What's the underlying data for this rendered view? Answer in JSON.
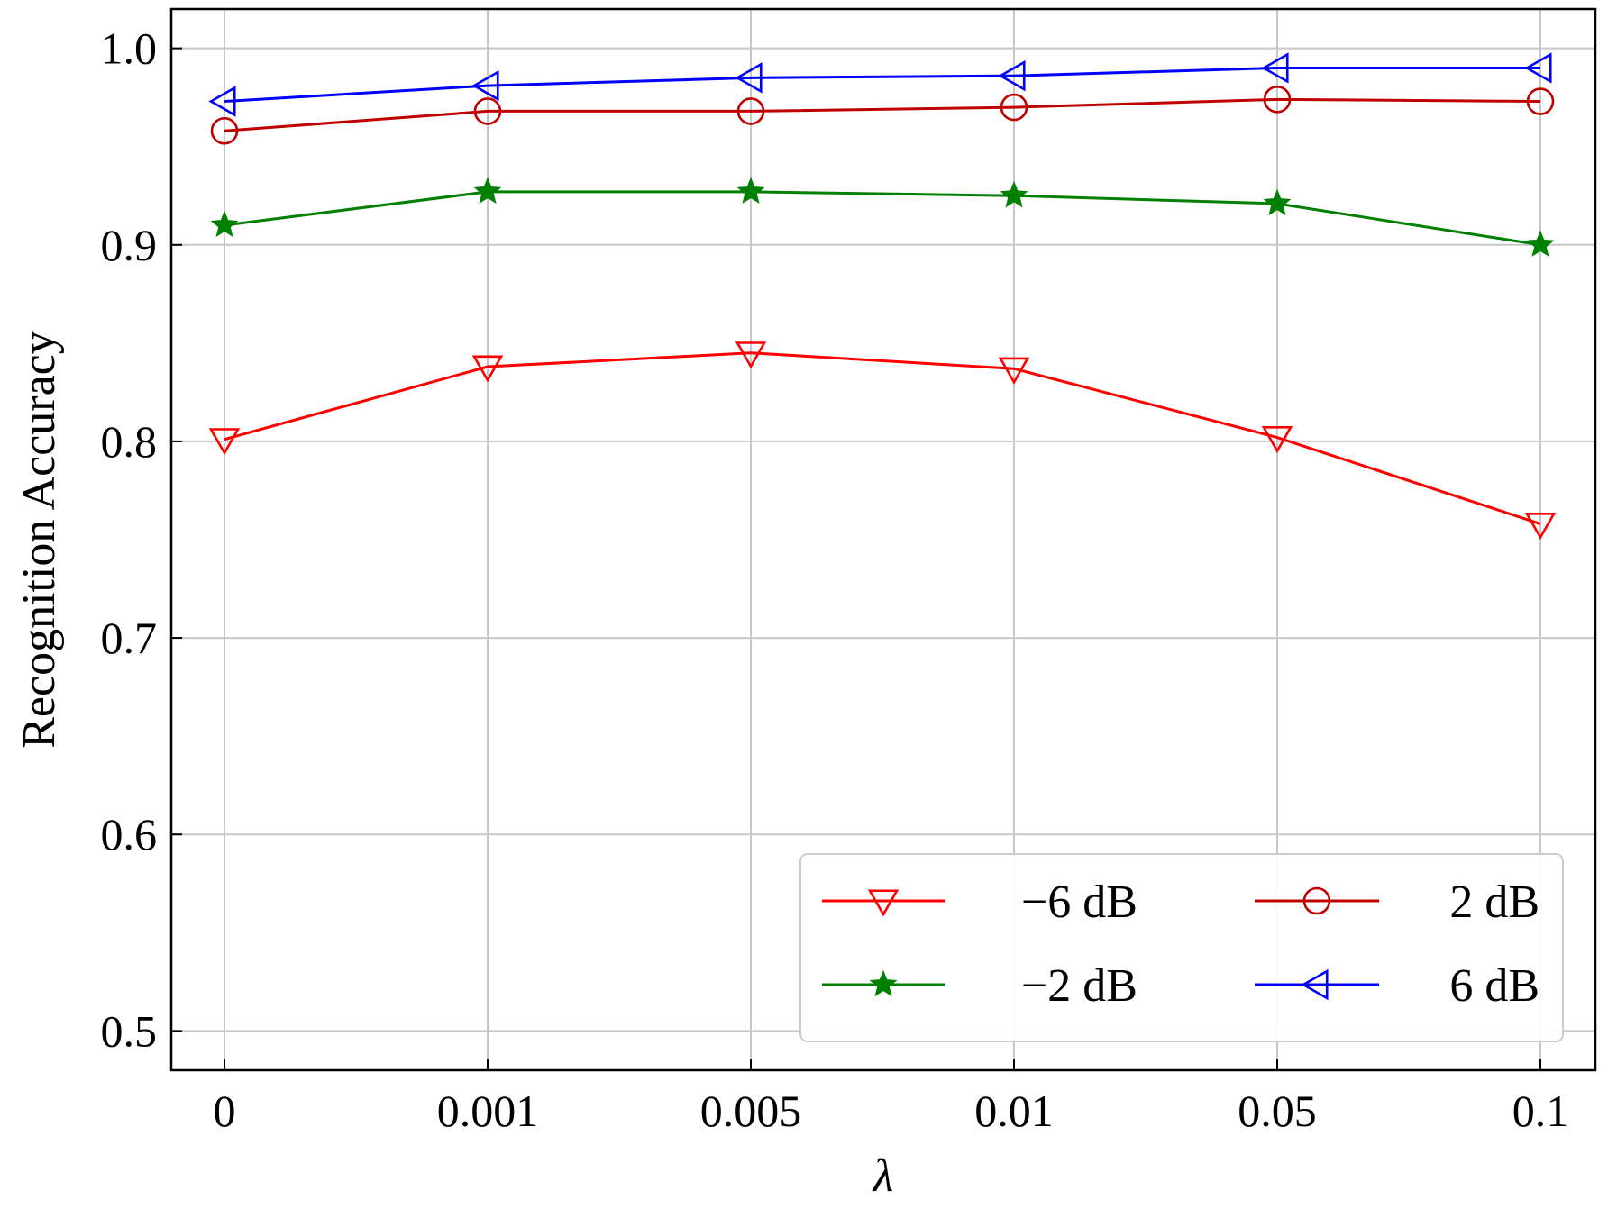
{
  "chart_data": {
    "type": "line",
    "title": "",
    "xlabel": "λ",
    "ylabel": "Recognition Accuracy",
    "categories": [
      "0",
      "0.001",
      "0.005",
      "0.01",
      "0.05",
      "0.1"
    ],
    "ylim": [
      0.48,
      1.02
    ],
    "yticks": [
      "0.5",
      "0.6",
      "0.7",
      "0.8",
      "0.9",
      "1.0"
    ],
    "grid": true,
    "legend_position": "lower-right",
    "legend_columns": 2,
    "series": [
      {
        "name": "−6 dB",
        "color": "#ff0000",
        "marker": "triangle-down",
        "values": [
          0.801,
          0.838,
          0.845,
          0.837,
          0.802,
          0.758
        ]
      },
      {
        "name": "2 dB",
        "color": "#c00000",
        "marker": "circle",
        "values": [
          0.958,
          0.968,
          0.968,
          0.97,
          0.974,
          0.973
        ]
      },
      {
        "name": "−2 dB",
        "color": "#008000",
        "marker": "star",
        "values": [
          0.91,
          0.927,
          0.927,
          0.925,
          0.921,
          0.9
        ]
      },
      {
        "name": "6 dB",
        "color": "#0000ff",
        "marker": "triangle-left",
        "values": [
          0.973,
          0.981,
          0.985,
          0.986,
          0.99,
          0.99
        ]
      }
    ]
  }
}
